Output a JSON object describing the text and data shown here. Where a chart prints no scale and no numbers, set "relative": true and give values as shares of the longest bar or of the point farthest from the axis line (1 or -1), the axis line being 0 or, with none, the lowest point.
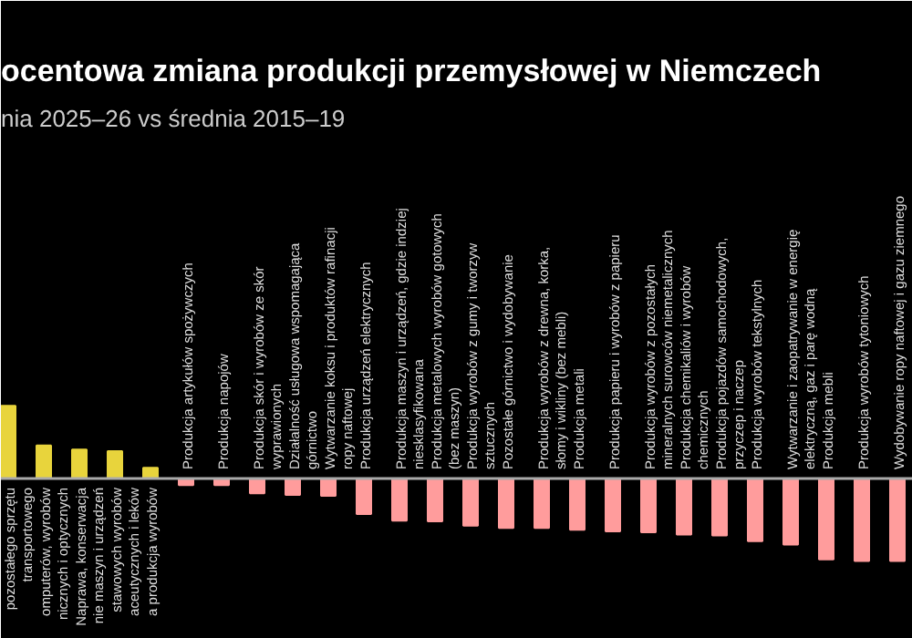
{
  "chart_data": {
    "type": "bar",
    "relative": true,
    "title": "ocentowa zmiana produkcji przemysłowej w Niemczech",
    "subtitle": "nia 2025–26 vs średnia 2015–19",
    "categories": [
      "pozostałego sprzętu\ntransportowego",
      "omputerów, wyrobów\nnicznych i optycznych",
      "Naprawa, konserwacja\nnie maszyn i urządzeń",
      "stawowych wyrobów\naceutycznych i leków",
      "a produkcja wyrobów",
      "Produkcja artykułów spożywczych",
      "Produkcja napojów",
      "Produkcja skór i wyrobów ze skór\nwyprawionych",
      "Działalność usługowa wspomagająca\ngórnictwo",
      "Wytwarzanie koksu i produktów rafinacji\nropy naftowej",
      "Produkcja urządzeń elektrycznych",
      "Produkcja maszyn i urządzeń, gdzie indziej\nniesklasyfikowana",
      "Produkcja metalowych wyrobów gotowych\n(bez maszyn)",
      "Produkcja wyrobów z gumy i tworzyw\nsztucznych",
      "Pozostałe górnictwo i wydobywanie",
      "Produkcja wyrobów z drewna, korka,\nsłomy i wikliny (bez mebli)",
      "Produkcja metali",
      "Produkcja papieru i wyrobów z papieru",
      "Produkcja wyrobów z pozostałych\nmineralnych surowców niemetalicznych",
      "Produkcja chemikaliów i wyrobów\nchemicznych",
      "Produkcja pojazdów samochodowych,\nprzyczep i naczep",
      "Produkcja wyrobów tekstylnych",
      "Wytwarzanie i zaopatrywanie w energię\nelektryczną, gaz i parę wodną",
      "Produkcja mebli",
      "Produkcja wyrobów tytoniowych",
      "Wydobywanie ropy naftowej i gazu ziemnego"
    ],
    "values": [
      0.88,
      0.4,
      0.35,
      0.33,
      0.13,
      -0.08,
      -0.08,
      -0.18,
      -0.2,
      -0.21,
      -0.43,
      -0.51,
      -0.52,
      -0.57,
      -0.6,
      -0.6,
      -0.62,
      -0.64,
      -0.65,
      -0.68,
      -0.69,
      -0.76,
      -0.8,
      -0.98,
      -1,
      -1
    ],
    "colors": [
      "#e8d43c",
      "#e8d43c",
      "#e8d43c",
      "#e8d43c",
      "#e8d43c",
      "#ff9c9c",
      "#ff9c9c",
      "#ff9c9c",
      "#ff9c9c",
      "#ff9c9c",
      "#ff9c9c",
      "#ff9c9c",
      "#ff9c9c",
      "#ff9c9c",
      "#ff9c9c",
      "#ff9c9c",
      "#ff9c9c",
      "#ff9c9c",
      "#ff9c9c",
      "#ff9c9c",
      "#ff9c9c",
      "#ff9c9c",
      "#ff9c9c",
      "#ff9c9c",
      "#ff9c9c",
      "#ff9c9c"
    ]
  }
}
